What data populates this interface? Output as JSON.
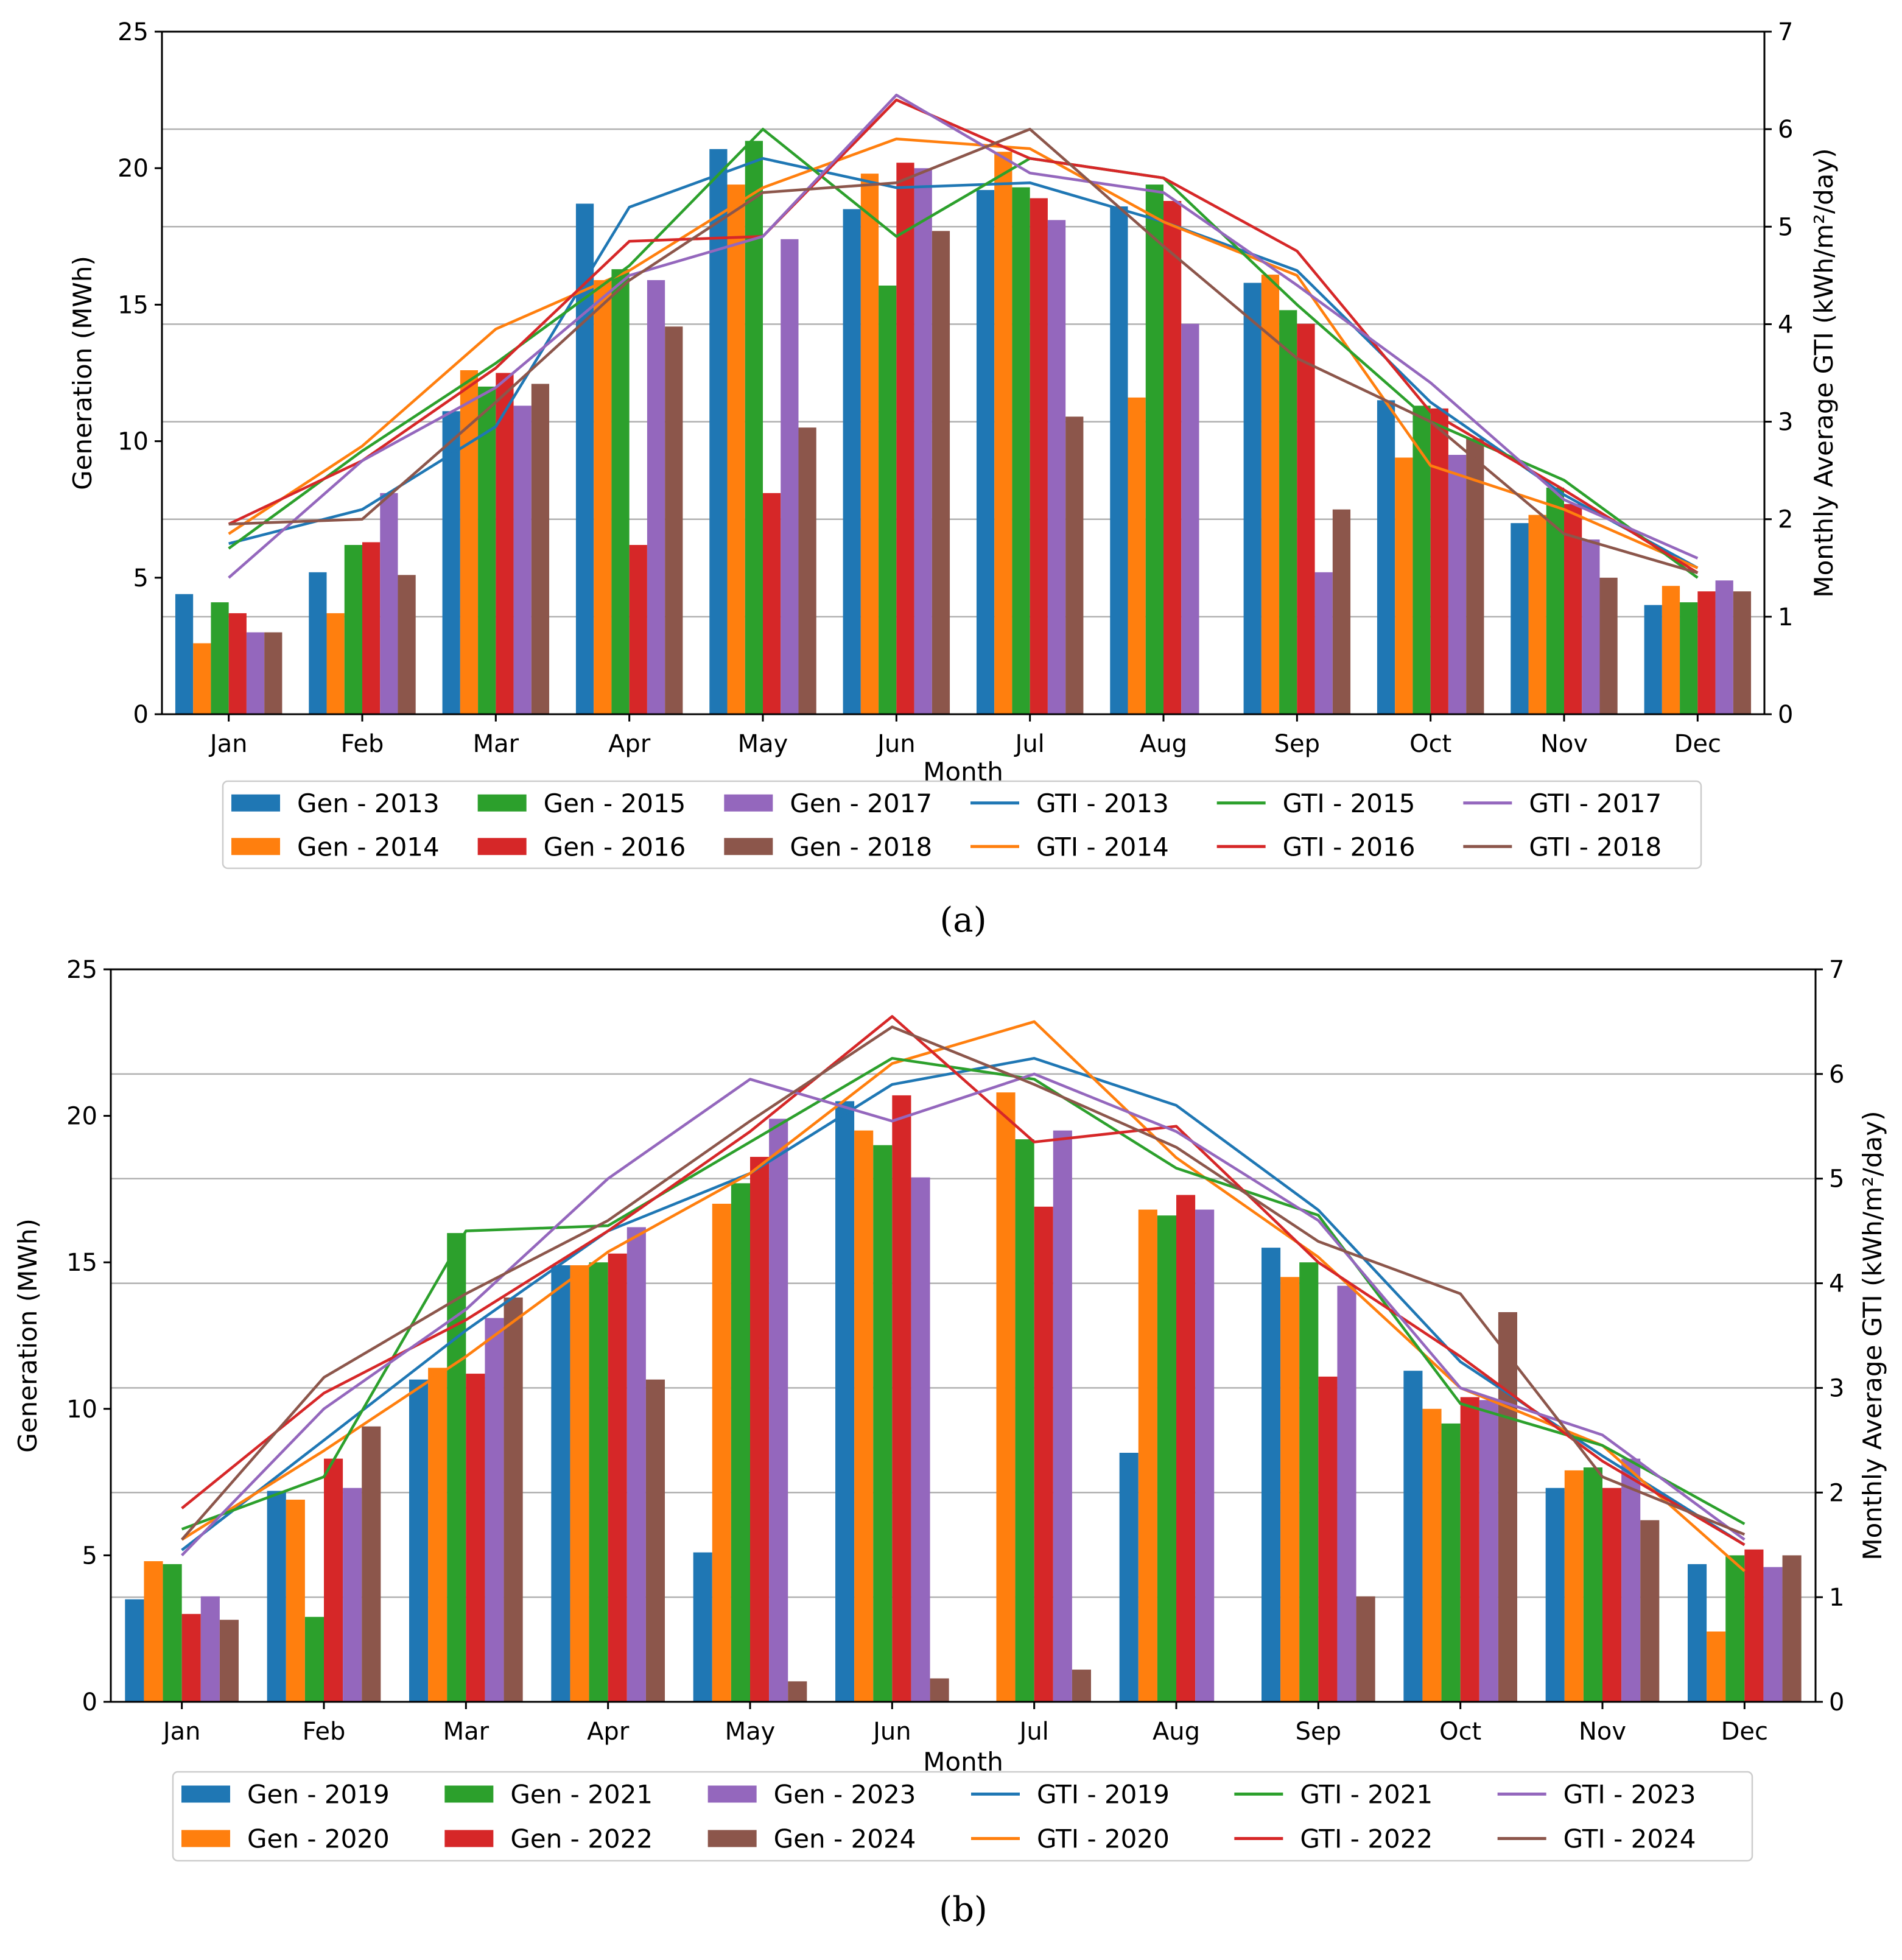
{
  "colors": {
    "2013": "#1f77b4",
    "2014": "#ff7f0e",
    "2015": "#2ca02c",
    "2016": "#d62728",
    "2017": "#9467bd",
    "2018": "#8c564b",
    "2019": "#1f77b4",
    "2020": "#ff7f0e",
    "2021": "#2ca02c",
    "2022": "#d62728",
    "2023": "#9467bd",
    "2024": "#8c564b"
  },
  "chart_data": [
    {
      "type": "bar+line",
      "panel_label": "(a)",
      "title": "",
      "xlabel": "Month",
      "ylabel": "Generation (MWh)",
      "y2label": "Monthly Average GTI (kWh/m²/day)",
      "ylim": [
        0,
        25
      ],
      "y2lim": [
        0,
        7
      ],
      "yticks": [
        "0",
        "5",
        "10",
        "15",
        "20",
        "25"
      ],
      "y2ticks": [
        "0",
        "1",
        "2",
        "3",
        "4",
        "5",
        "6",
        "7"
      ],
      "grid": "horizontal (secondary axis)",
      "categories": [
        "Jan",
        "Feb",
        "Mar",
        "Apr",
        "May",
        "Jun",
        "Jul",
        "Aug",
        "Sep",
        "Oct",
        "Nov",
        "Dec"
      ],
      "bar_series": [
        {
          "name": "Gen - 2013",
          "year": "2013",
          "values": [
            4.4,
            5.2,
            11.1,
            18.7,
            20.7,
            18.5,
            19.2,
            18.6,
            15.8,
            11.5,
            7.0,
            4.0
          ]
        },
        {
          "name": "Gen - 2014",
          "year": "2014",
          "values": [
            2.6,
            3.7,
            12.6,
            15.9,
            19.4,
            19.8,
            20.6,
            11.6,
            16.1,
            9.4,
            7.3,
            4.7
          ]
        },
        {
          "name": "Gen - 2015",
          "year": "2015",
          "values": [
            4.1,
            6.2,
            12.0,
            16.3,
            21.0,
            15.7,
            19.3,
            19.4,
            14.8,
            11.3,
            8.3,
            4.1
          ]
        },
        {
          "name": "Gen - 2016",
          "year": "2016",
          "values": [
            3.7,
            6.3,
            12.5,
            6.2,
            8.1,
            20.2,
            18.9,
            18.8,
            14.3,
            11.2,
            7.7,
            4.5
          ]
        },
        {
          "name": "Gen - 2017",
          "year": "2017",
          "values": [
            3.0,
            8.1,
            11.3,
            15.9,
            17.4,
            20.0,
            18.1,
            14.3,
            5.2,
            9.5,
            6.4,
            4.9
          ]
        },
        {
          "name": "Gen - 2018",
          "year": "2018",
          "values": [
            3.0,
            5.1,
            12.1,
            14.2,
            10.5,
            17.7,
            10.9,
            null,
            7.5,
            10.1,
            5.0,
            4.5
          ]
        }
      ],
      "line_series": [
        {
          "name": "GTI - 2013",
          "year": "2013",
          "values": [
            1.75,
            2.1,
            2.95,
            5.2,
            5.7,
            5.4,
            5.45,
            5.05,
            4.55,
            3.2,
            2.25,
            1.5
          ]
        },
        {
          "name": "GTI - 2014",
          "year": "2014",
          "values": [
            1.85,
            2.75,
            3.95,
            4.55,
            5.4,
            5.9,
            5.8,
            5.05,
            4.5,
            2.55,
            2.1,
            1.5
          ]
        },
        {
          "name": "GTI - 2015",
          "year": "2015",
          "values": [
            1.7,
            2.7,
            3.6,
            4.6,
            6.0,
            4.9,
            5.7,
            5.5,
            4.2,
            3.0,
            2.4,
            1.4
          ]
        },
        {
          "name": "GTI - 2016",
          "year": "2016",
          "values": [
            1.95,
            2.6,
            3.55,
            4.85,
            4.9,
            6.3,
            5.7,
            5.5,
            4.75,
            3.1,
            2.3,
            1.45
          ]
        },
        {
          "name": "GTI - 2017",
          "year": "2017",
          "values": [
            1.4,
            2.6,
            3.35,
            4.5,
            4.9,
            6.35,
            5.55,
            5.35,
            4.4,
            3.4,
            2.2,
            1.6
          ]
        },
        {
          "name": "GTI - 2018",
          "year": "2018",
          "values": [
            1.95,
            2.0,
            3.2,
            4.45,
            5.35,
            5.45,
            6.0,
            4.8,
            3.65,
            3.0,
            1.85,
            1.45
          ]
        }
      ],
      "legend": {
        "placement": "below plot, 6 columns",
        "entries": [
          "Gen - 2013",
          "Gen - 2014",
          "Gen - 2015",
          "Gen - 2016",
          "Gen - 2017",
          "Gen - 2018",
          "GTI - 2013",
          "GTI - 2014",
          "GTI - 2015",
          "GTI - 2016",
          "GTI - 2017",
          "GTI - 2018"
        ]
      }
    },
    {
      "type": "bar+line",
      "panel_label": "(b)",
      "title": "",
      "xlabel": "Month",
      "ylabel": "Generation (MWh)",
      "y2label": "Monthly Average GTI (kWh/m²/day)",
      "ylim": [
        0,
        25
      ],
      "y2lim": [
        0,
        7
      ],
      "yticks": [
        "0",
        "5",
        "10",
        "15",
        "20",
        "25"
      ],
      "y2ticks": [
        "0",
        "1",
        "2",
        "3",
        "4",
        "5",
        "6",
        "7"
      ],
      "grid": "horizontal (secondary axis)",
      "categories": [
        "Jan",
        "Feb",
        "Mar",
        "Apr",
        "May",
        "Jun",
        "Jul",
        "Aug",
        "Sep",
        "Oct",
        "Nov",
        "Dec"
      ],
      "bar_series": [
        {
          "name": "Gen - 2019",
          "year": "2019",
          "values": [
            3.5,
            7.2,
            11.0,
            14.9,
            5.1,
            20.5,
            null,
            8.5,
            15.5,
            11.3,
            7.3,
            4.7
          ]
        },
        {
          "name": "Gen - 2020",
          "year": "2020",
          "values": [
            4.8,
            6.9,
            11.4,
            14.9,
            17.0,
            19.5,
            20.8,
            16.8,
            14.5,
            10.0,
            7.9,
            2.4
          ]
        },
        {
          "name": "Gen - 2021",
          "year": "2021",
          "values": [
            4.7,
            2.9,
            16.0,
            15.0,
            17.7,
            19.0,
            19.2,
            16.6,
            15.0,
            9.5,
            8.0,
            5.0
          ]
        },
        {
          "name": "Gen - 2022",
          "year": "2022",
          "values": [
            3.0,
            8.3,
            11.2,
            15.3,
            18.6,
            20.7,
            16.9,
            17.3,
            11.1,
            10.4,
            7.3,
            5.2
          ]
        },
        {
          "name": "Gen - 2023",
          "year": "2023",
          "values": [
            3.6,
            7.3,
            13.1,
            16.2,
            19.9,
            17.9,
            19.5,
            16.8,
            14.2,
            10.3,
            8.3,
            4.6
          ]
        },
        {
          "name": "Gen - 2024",
          "year": "2024",
          "values": [
            2.8,
            9.4,
            13.8,
            11.0,
            0.7,
            0.8,
            1.1,
            null,
            3.6,
            13.3,
            6.2,
            5.0
          ]
        }
      ],
      "line_series": [
        {
          "name": "GTI - 2019",
          "year": "2019",
          "values": [
            1.45,
            2.5,
            3.55,
            4.5,
            5.05,
            5.9,
            6.15,
            5.7,
            4.7,
            3.25,
            2.35,
            1.5
          ]
        },
        {
          "name": "GTI - 2020",
          "year": "2020",
          "values": [
            1.55,
            2.4,
            3.3,
            4.3,
            5.05,
            6.1,
            6.5,
            5.2,
            4.25,
            3.0,
            2.45,
            1.25
          ]
        },
        {
          "name": "GTI - 2021",
          "year": "2021",
          "values": [
            1.65,
            2.15,
            4.5,
            4.55,
            5.35,
            6.15,
            5.95,
            5.1,
            4.65,
            2.85,
            2.45,
            1.7
          ]
        },
        {
          "name": "GTI - 2022",
          "year": "2022",
          "values": [
            1.85,
            2.95,
            3.65,
            4.5,
            5.45,
            6.55,
            5.35,
            5.5,
            4.2,
            3.3,
            2.3,
            1.5
          ]
        },
        {
          "name": "GTI - 2023",
          "year": "2023",
          "values": [
            1.4,
            2.8,
            3.75,
            5.0,
            5.95,
            5.55,
            6.0,
            5.45,
            4.6,
            3.0,
            2.55,
            1.55
          ]
        },
        {
          "name": "GTI - 2024",
          "year": "2024",
          "values": [
            1.55,
            3.1,
            3.9,
            4.6,
            5.55,
            6.45,
            5.9,
            5.3,
            4.4,
            3.9,
            2.15,
            1.6
          ]
        }
      ],
      "legend": {
        "placement": "below plot, 6 columns",
        "entries": [
          "Gen - 2019",
          "Gen - 2020",
          "Gen - 2021",
          "Gen - 2022",
          "Gen - 2023",
          "Gen - 2024",
          "GTI - 2019",
          "GTI - 2020",
          "GTI - 2021",
          "GTI - 2022",
          "GTI - 2023",
          "GTI - 2024"
        ]
      }
    }
  ]
}
